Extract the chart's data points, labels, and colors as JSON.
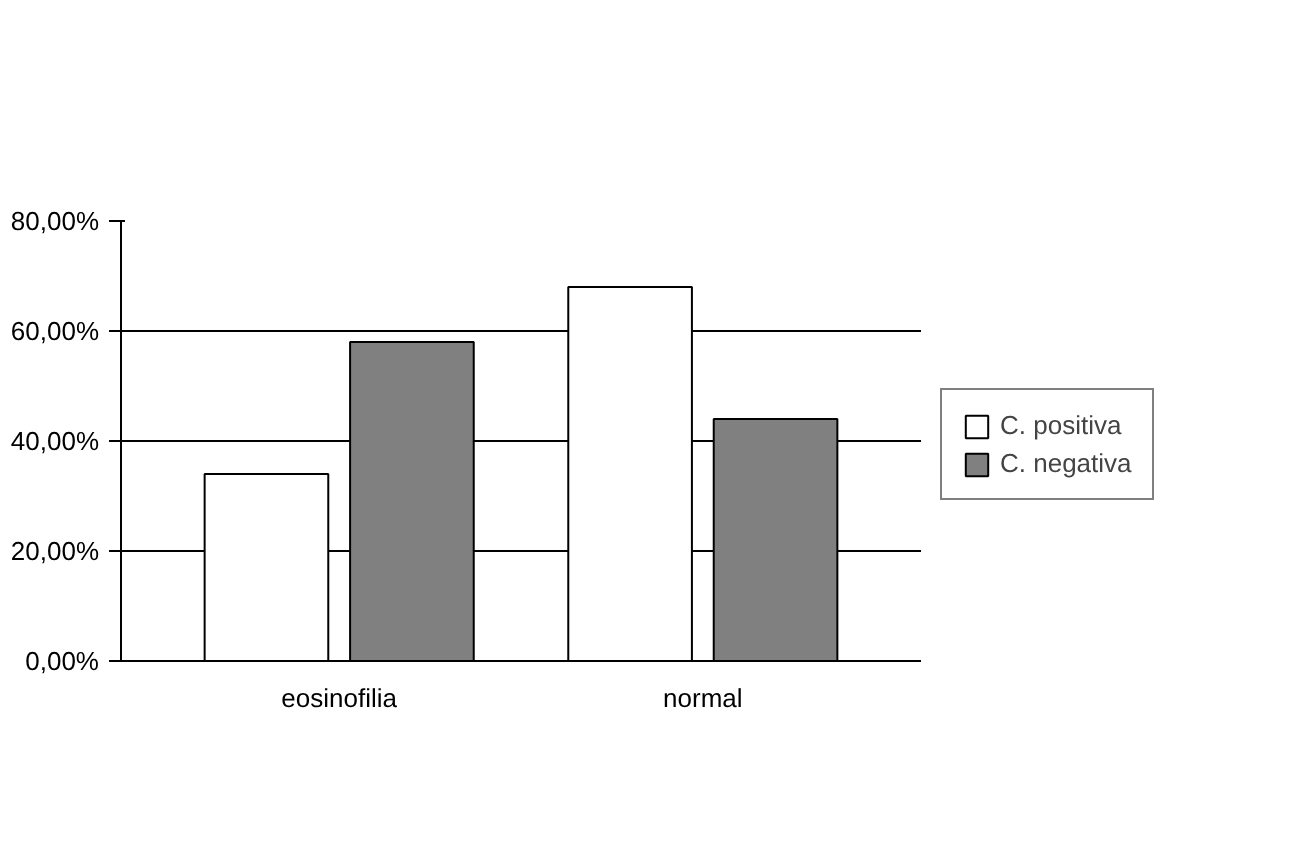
{
  "chart_data": {
    "type": "bar",
    "categories": [
      "eosinofilia",
      "normal"
    ],
    "series": [
      {
        "name": "C. positiva",
        "color": "#ffffff",
        "values": [
          34,
          68
        ]
      },
      {
        "name": "C. negativa",
        "color": "#808080",
        "values": [
          58,
          44
        ]
      }
    ],
    "ylim": [
      0,
      80
    ],
    "yticks": [
      {
        "value": 0,
        "label": "0,00%"
      },
      {
        "value": 20,
        "label": "20,00%"
      },
      {
        "value": 40,
        "label": "40,00%"
      },
      {
        "value": 60,
        "label": "60,00%"
      },
      {
        "value": 80,
        "label": "80,00%"
      }
    ],
    "grid": "y",
    "legend": "right"
  }
}
